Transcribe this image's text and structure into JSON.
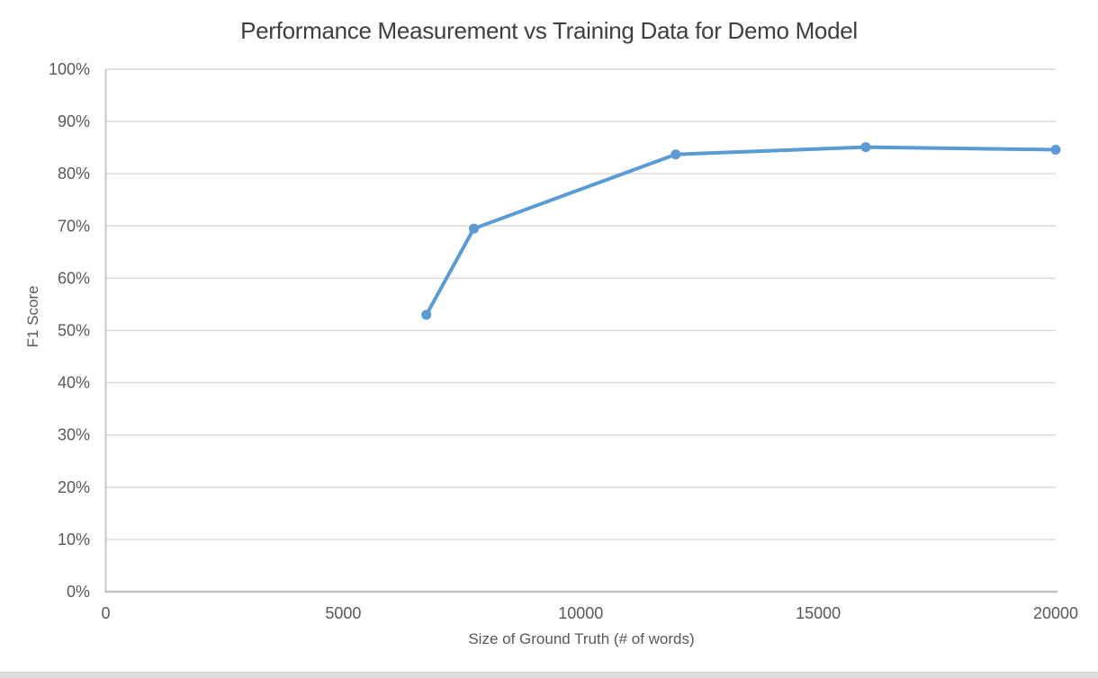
{
  "chart_data": {
    "type": "line",
    "title": "Performance Measurement vs Training Data for Demo Model",
    "xlabel": "Size of Ground Truth (# of words)",
    "ylabel": "F1 Score",
    "series_name": "F1 Score",
    "x": [
      6750,
      7750,
      12000,
      16000,
      20000
    ],
    "y": [
      53,
      69.5,
      83.7,
      85.1,
      84.6
    ],
    "y_unit": "%",
    "xlim": [
      0,
      20000
    ],
    "ylim": [
      0,
      100
    ],
    "x_ticks": [
      0,
      5000,
      10000,
      15000,
      20000
    ],
    "x_tick_labels": [
      "0",
      "5000",
      "10000",
      "15000",
      "20000"
    ],
    "y_ticks": [
      0,
      10,
      20,
      30,
      40,
      50,
      60,
      70,
      80,
      90,
      100
    ],
    "y_tick_labels": [
      "0%",
      "10%",
      "20%",
      "30%",
      "40%",
      "50%",
      "60%",
      "70%",
      "80%",
      "90%",
      "100%"
    ],
    "grid": "horizontal",
    "legend": "none",
    "marker": "circle",
    "colors": {
      "line": "#5b9bd5",
      "marker": "#5b9bd5",
      "gridline": "#d9d9d9",
      "y_axis_line": "#c9c9c9",
      "x_axis_line": "#c1c1c1",
      "tick_text": "#595959",
      "title_text": "#3f3f3f"
    }
  },
  "window": {
    "bottom_bar_color": "#dedede"
  }
}
